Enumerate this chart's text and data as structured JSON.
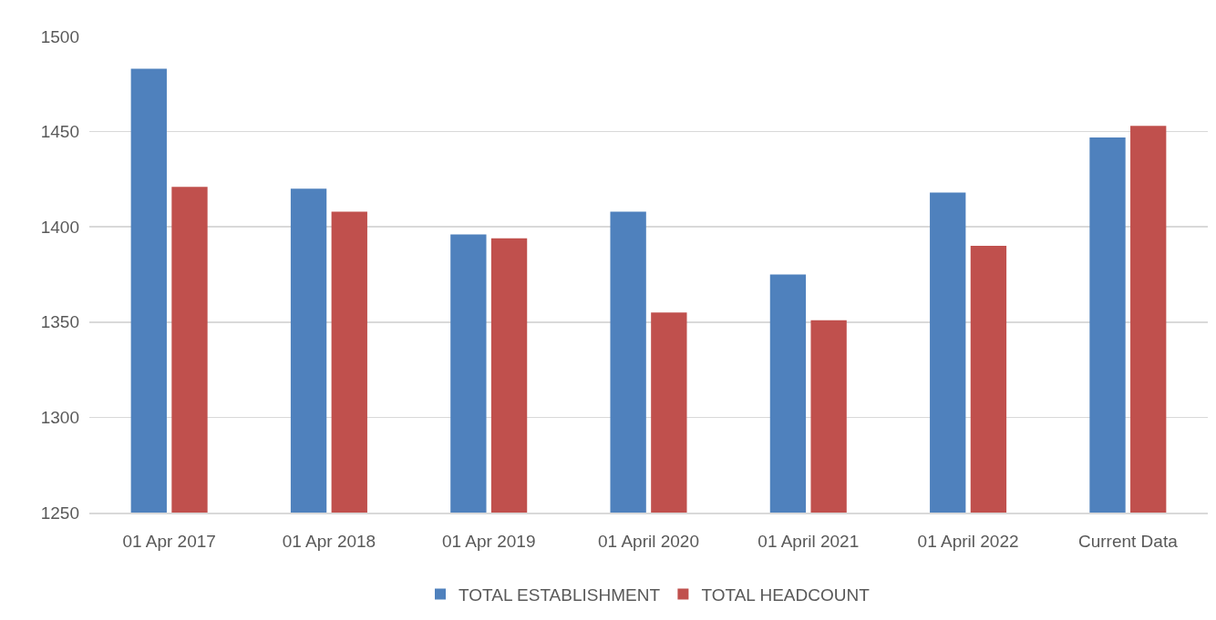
{
  "chart_data": {
    "type": "bar",
    "categories": [
      "01 Apr 2017",
      "01 Apr 2018",
      "01 Apr 2019",
      "01 April 2020",
      "01 April 2021",
      "01 April 2022",
      "Current Data"
    ],
    "series": [
      {
        "name": "TOTAL ESTABLISHMENT",
        "color": "#4f81bd",
        "values": [
          1483,
          1420,
          1396,
          1408,
          1375,
          1418,
          1447
        ]
      },
      {
        "name": "TOTAL HEADCOUNT",
        "color": "#c0504d",
        "values": [
          1421,
          1408,
          1394,
          1355,
          1351,
          1390,
          1453
        ]
      }
    ],
    "ylim": [
      1250,
      1500
    ],
    "yticks": [
      1250,
      1300,
      1350,
      1400,
      1450,
      1500
    ],
    "grid": "y",
    "legend": "bottom"
  }
}
